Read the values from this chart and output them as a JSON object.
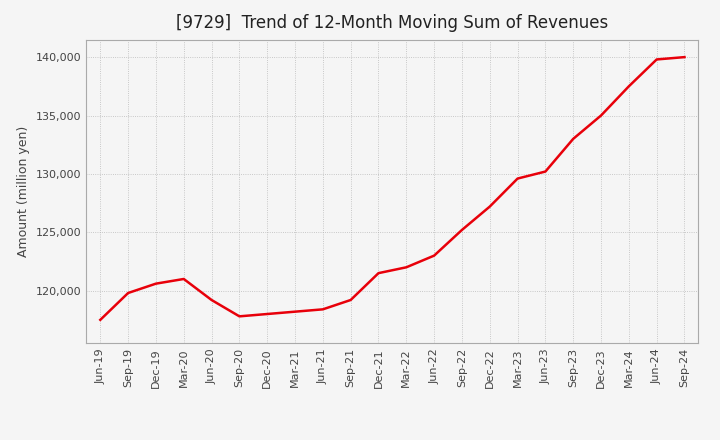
{
  "title": "[9729]  Trend of 12-Month Moving Sum of Revenues",
  "ylabel": "Amount (million yen)",
  "line_color": "#E8000A",
  "background_color": "#F5F5F5",
  "plot_bg_color": "#F5F5F5",
  "grid_color": "#AAAAAA",
  "x_labels": [
    "Jun-19",
    "Sep-19",
    "Dec-19",
    "Mar-20",
    "Jun-20",
    "Sep-20",
    "Dec-20",
    "Mar-21",
    "Jun-21",
    "Sep-21",
    "Dec-21",
    "Mar-22",
    "Jun-22",
    "Sep-22",
    "Dec-22",
    "Mar-23",
    "Jun-23",
    "Sep-23",
    "Dec-23",
    "Mar-24",
    "Jun-24",
    "Sep-24"
  ],
  "y_values": [
    117500,
    119800,
    120600,
    121000,
    119200,
    117800,
    118000,
    118200,
    118400,
    119200,
    121500,
    122000,
    123000,
    125200,
    127200,
    129600,
    130200,
    133000,
    135000,
    137500,
    139800,
    140000
  ],
  "ylim": [
    115500,
    141500
  ],
  "yticks": [
    120000,
    125000,
    130000,
    135000,
    140000
  ],
  "title_fontsize": 12,
  "label_fontsize": 9,
  "tick_fontsize": 8,
  "line_width": 1.8,
  "title_color": "#222222",
  "tick_color": "#444444",
  "label_color": "#444444"
}
